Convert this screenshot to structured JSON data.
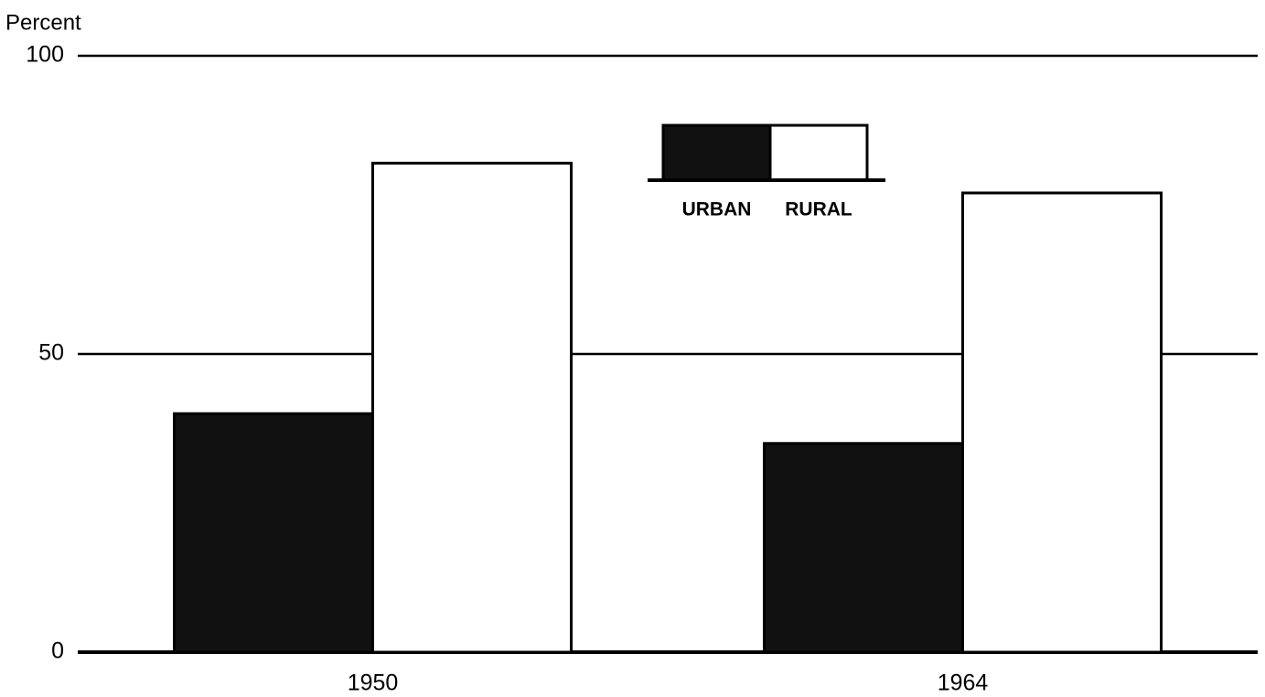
{
  "chart_data": {
    "type": "bar",
    "y_axis_label": "Percent",
    "categories": [
      "1950",
      "1964"
    ],
    "series": [
      {
        "name": "URBAN",
        "color": "#111111",
        "values": [
          40,
          35
        ]
      },
      {
        "name": "RURAL",
        "color": "#ffffff",
        "values": [
          82,
          77
        ]
      }
    ],
    "ylim": [
      0,
      100
    ],
    "yticks": [
      0,
      50,
      100
    ],
    "grid": true,
    "legend": "top"
  }
}
